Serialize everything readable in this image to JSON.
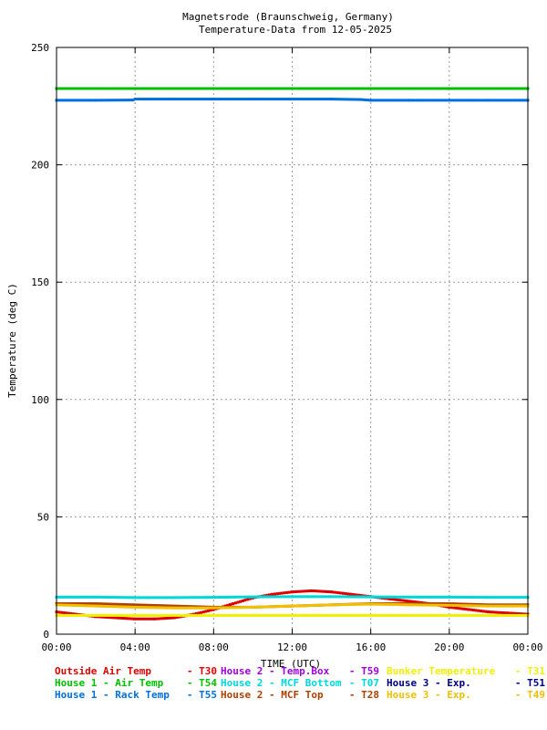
{
  "chart_data": {
    "type": "scatter",
    "title": "Magnetsrode (Braunschweig, Germany)",
    "subtitle": "Temperature-Data from 12-05-2025",
    "xlabel": "TIME (UTC)",
    "ylabel": "Temperature (deg C)",
    "xlim": [
      0,
      24
    ],
    "ylim": [
      0,
      250
    ],
    "x_ticks": [
      "00:00",
      "04:00",
      "08:00",
      "12:00",
      "16:00",
      "20:00",
      "00:00"
    ],
    "y_ticks": [
      "0",
      "50",
      "100",
      "150",
      "200",
      "250"
    ],
    "grid": true,
    "legend_position": "bottom",
    "series": [
      {
        "name": "Outside Air Temp",
        "code": "T30",
        "color": "#e00000",
        "x": [
          0,
          1,
          2,
          3,
          4,
          5,
          6,
          7,
          8,
          9,
          10,
          11,
          12,
          13,
          14,
          15,
          16,
          17,
          18,
          19,
          20,
          21,
          22,
          23,
          24
        ],
        "y": [
          9.5,
          8.5,
          7.5,
          7,
          6.5,
          6.5,
          7,
          8.5,
          10.5,
          13,
          15.5,
          17,
          18,
          18.5,
          18,
          17,
          16,
          15,
          14,
          13,
          11.5,
          10.5,
          9.5,
          9,
          8.5
        ]
      },
      {
        "name": "House 2 - Temp.Box",
        "code": "T59",
        "color": "#a000e0",
        "x": [],
        "y": []
      },
      {
        "name": "Bunker Temperature",
        "code": "T31",
        "color": "#f0f000",
        "x": [
          0,
          2,
          4,
          6,
          8,
          10,
          12,
          14,
          16,
          18,
          20,
          22,
          24
        ],
        "y": [
          8,
          8,
          8,
          8,
          8,
          8,
          8,
          8,
          8,
          8,
          8,
          8,
          8
        ]
      },
      {
        "name": "House 1 - Air  Temp",
        "code": "T54",
        "color": "#00c000",
        "x": [
          0,
          2,
          4,
          6,
          8,
          10,
          12,
          14,
          16,
          18,
          20,
          22,
          24
        ],
        "y": [
          232.5,
          232.5,
          232.5,
          232.5,
          232.5,
          232.5,
          232.5,
          232.5,
          232.5,
          232.5,
          232.5,
          232.5,
          232.5
        ]
      },
      {
        "name": "House 2 - MCF Bottom",
        "code": "T07",
        "color": "#00d8d8",
        "x": [
          0,
          2,
          4,
          6,
          8,
          10,
          12,
          14,
          16,
          18,
          20,
          22,
          24
        ],
        "y": [
          15.8,
          15.8,
          15.6,
          15.6,
          15.7,
          15.9,
          16,
          16,
          15.9,
          15.8,
          15.8,
          15.7,
          15.7
        ]
      },
      {
        "name": "House 3 - Exp.",
        "code": "T51",
        "color": "#000080",
        "x": [],
        "y": []
      },
      {
        "name": "House 1 - Rack Temp",
        "code": "T55",
        "color": "#0070e0",
        "x": [
          0,
          2,
          3.9,
          4,
          6,
          8,
          10,
          12,
          14,
          15.5,
          16,
          18,
          20,
          22,
          24
        ],
        "y": [
          227.5,
          227.5,
          227.6,
          228,
          228,
          228,
          228,
          228,
          228,
          227.8,
          227.5,
          227.5,
          227.5,
          227.5,
          227.5
        ]
      },
      {
        "name": "House 2 - MCF Top",
        "code": "T28",
        "color": "#b04000",
        "x": [
          0,
          2,
          4,
          6,
          8,
          10,
          12,
          14,
          16,
          18,
          20,
          22,
          24
        ],
        "y": [
          13,
          13,
          12.5,
          12,
          11.5,
          11.5,
          12,
          12.5,
          13,
          13,
          13,
          12.5,
          12.5
        ]
      },
      {
        "name": "House 3 - Exp.",
        "code": "T49",
        "color": "#f0c000",
        "x": [
          0,
          2,
          4,
          6,
          8,
          10,
          12,
          14,
          16,
          18,
          20,
          22,
          24
        ],
        "y": [
          12.5,
          12,
          11.5,
          11.2,
          11.2,
          11.5,
          12,
          12.5,
          12.8,
          12.5,
          12.3,
          12,
          12
        ]
      }
    ]
  }
}
